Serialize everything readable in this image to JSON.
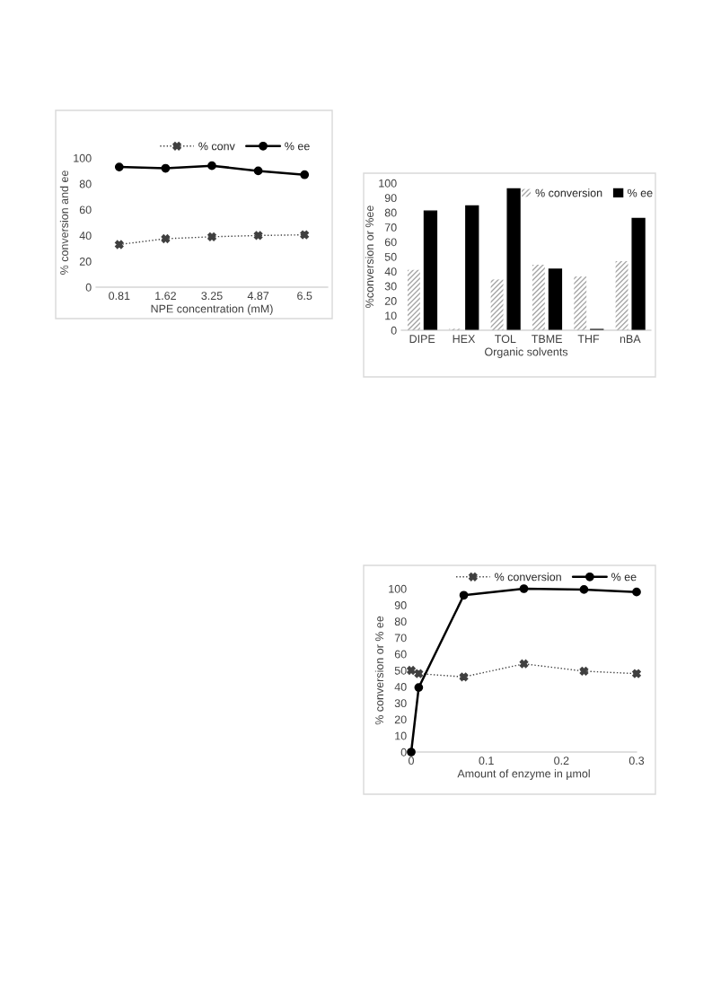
{
  "chart_data": [
    {
      "type": "line",
      "categories": [
        "0.81",
        "1.62",
        "3.25",
        "4.87",
        "6.5"
      ],
      "xlabel": "NPE concentration (mM)",
      "ylabel": "% conversion and ee",
      "ylim": [
        0,
        100
      ],
      "yticks": [
        0,
        20,
        40,
        60,
        80,
        100
      ],
      "legend": "top",
      "grid": false,
      "series": [
        {
          "name": "% conv",
          "color": "#404040",
          "marker": "cross",
          "line_style": "dotted",
          "values": [
            33,
            37.5,
            39,
            40,
            40.5
          ]
        },
        {
          "name": "% ee",
          "color": "#000000",
          "marker": "circle",
          "line_style": "solid",
          "values": [
            93,
            92,
            94,
            90,
            87
          ]
        }
      ]
    },
    {
      "type": "bar",
      "categories": [
        "DIPE",
        "HEX",
        "TOL",
        "TBME",
        "THF",
        "nBA"
      ],
      "xlabel": "Organic solvents",
      "ylabel": "%conversion or %ee",
      "ylim": [
        0,
        100
      ],
      "yticks": [
        0,
        10,
        20,
        30,
        40,
        50,
        60,
        70,
        80,
        90,
        100
      ],
      "legend": "top right",
      "grid": false,
      "series": [
        {
          "name": "% conversion",
          "color": "#a6a6a6",
          "values": [
            41,
            1,
            34.5,
            44.5,
            36.5,
            47
          ]
        },
        {
          "name": "% ee",
          "color": "#000000",
          "values": [
            81,
            84.5,
            96,
            41.5,
            0.5,
            76
          ]
        }
      ]
    },
    {
      "type": "line",
      "x": [
        0,
        0.01,
        0.07,
        0.15,
        0.23,
        0.3
      ],
      "xlabel": "Amount of enzyme in µmol",
      "ylabel": "% conversion or % ee",
      "xlim": [
        0,
        0.3
      ],
      "xticks": [
        0,
        0.1,
        0.2,
        0.3
      ],
      "ylim": [
        0,
        100
      ],
      "yticks": [
        0,
        10,
        20,
        30,
        40,
        50,
        60,
        70,
        80,
        90,
        100
      ],
      "legend": "top",
      "grid": false,
      "series": [
        {
          "name": "% conversion",
          "color": "#404040",
          "marker": "cross",
          "line_style": "dotted",
          "values": [
            50,
            48,
            46,
            54,
            49.5,
            48
          ]
        },
        {
          "name": "% ee",
          "color": "#000000",
          "marker": "circle",
          "line_style": "solid",
          "values": [
            0,
            39.5,
            96,
            100,
            99.5,
            98
          ]
        }
      ]
    }
  ]
}
